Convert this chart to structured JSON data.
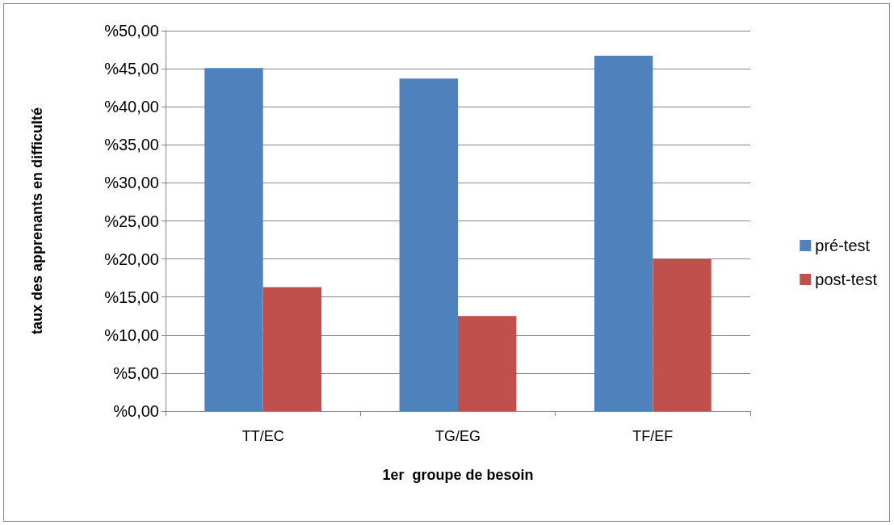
{
  "chart_data": {
    "type": "bar",
    "xlabel": "1er  groupe de besoin",
    "ylabel": "taux des apprenants en difficulté",
    "categories": [
      "TT/EC",
      "TG/EG",
      "TF/EF"
    ],
    "series": [
      {
        "name": "pré-test",
        "color": "#4f81bd",
        "values": [
          45.1,
          43.7,
          46.7
        ]
      },
      {
        "name": "post-test",
        "color": "#c0504d",
        "values": [
          16.3,
          12.5,
          20.0
        ]
      }
    ],
    "ylim": [
      0,
      50
    ],
    "yticks": [
      {
        "value": 0,
        "label": "%0,00"
      },
      {
        "value": 5,
        "label": "%5,00"
      },
      {
        "value": 10,
        "label": "%10,00"
      },
      {
        "value": 15,
        "label": "%15,00"
      },
      {
        "value": 20,
        "label": "%20,00"
      },
      {
        "value": 25,
        "label": "%25,00"
      },
      {
        "value": 30,
        "label": "%30,00"
      },
      {
        "value": 35,
        "label": "%35,00"
      },
      {
        "value": 40,
        "label": "%40,00"
      },
      {
        "value": 45,
        "label": "%45,00"
      },
      {
        "value": 50,
        "label": "%50,00"
      }
    ],
    "grid": "y",
    "legend": "right"
  }
}
